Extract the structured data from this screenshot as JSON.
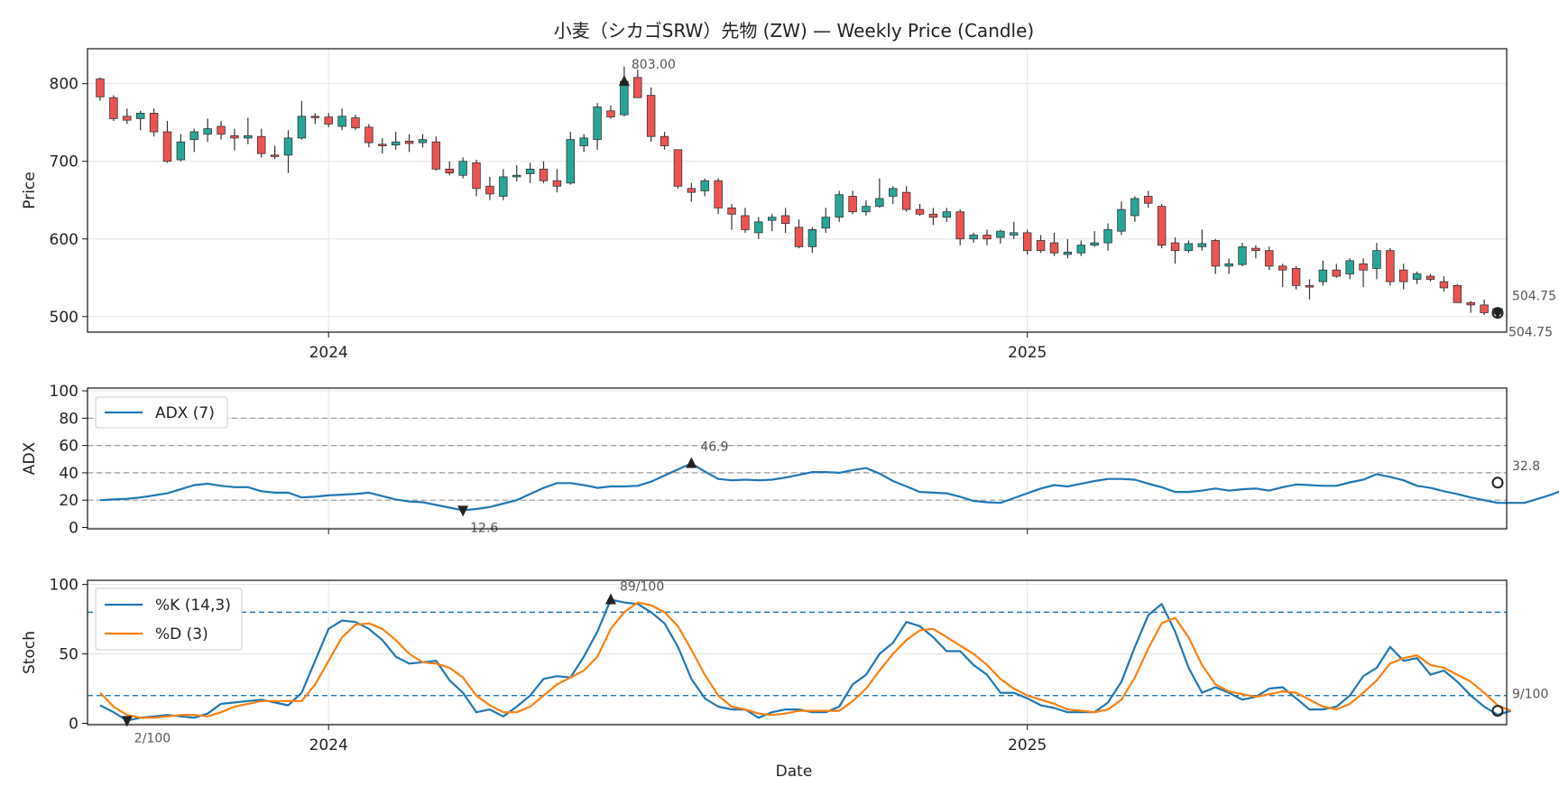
{
  "title": "小麦（シカゴSRW）先物 (ZW) — Weekly Price (Candle)",
  "colors": {
    "up": "#26a69a",
    "down": "#ef5350",
    "adx": "#1f77b4",
    "k": "#1f77b4",
    "d": "#ff7f0e",
    "marker": "#222222"
  },
  "x_axis": {
    "label": "Date",
    "year_ticks": [
      {
        "label": "2024",
        "index": 17
      },
      {
        "label": "2025",
        "index": 69
      }
    ]
  },
  "chart_data": [
    {
      "type": "candlestick",
      "panel": "price",
      "ylabel": "Price",
      "ylim": [
        480,
        845
      ],
      "yticks": [
        500,
        600,
        700,
        800
      ],
      "annotations": {
        "max_label": "803.00",
        "max_index": 39,
        "last_label": "504.75",
        "last_low_label": "504.75"
      },
      "ohlc": [
        [
          806,
          808,
          778,
          783
        ],
        [
          782,
          785,
          752,
          755
        ],
        [
          758,
          768,
          748,
          753
        ],
        [
          755,
          765,
          740,
          762
        ],
        [
          762,
          768,
          732,
          738
        ],
        [
          738,
          752,
          698,
          700
        ],
        [
          702,
          735,
          700,
          725
        ],
        [
          728,
          742,
          712,
          738
        ],
        [
          735,
          755,
          725,
          742
        ],
        [
          745,
          752,
          728,
          735
        ],
        [
          733,
          742,
          714,
          730
        ],
        [
          730,
          756,
          722,
          733
        ],
        [
          732,
          742,
          705,
          710
        ],
        [
          708,
          720,
          703,
          707
        ],
        [
          708,
          740,
          685,
          730
        ],
        [
          730,
          778,
          728,
          758
        ],
        [
          758,
          762,
          748,
          757
        ],
        [
          757,
          762,
          744,
          748
        ],
        [
          745,
          768,
          740,
          758
        ],
        [
          756,
          760,
          740,
          743
        ],
        [
          744,
          748,
          718,
          724
        ],
        [
          722,
          730,
          710,
          720
        ],
        [
          721,
          738,
          715,
          725
        ],
        [
          726,
          735,
          712,
          723
        ],
        [
          724,
          735,
          718,
          728
        ],
        [
          725,
          732,
          688,
          690
        ],
        [
          690,
          700,
          682,
          685
        ],
        [
          682,
          705,
          678,
          700
        ],
        [
          698,
          702,
          655,
          665
        ],
        [
          668,
          680,
          650,
          658
        ],
        [
          655,
          690,
          650,
          680
        ],
        [
          680,
          695,
          674,
          682
        ],
        [
          684,
          698,
          672,
          690
        ],
        [
          690,
          700,
          672,
          675
        ],
        [
          675,
          690,
          660,
          668
        ],
        [
          672,
          738,
          670,
          728
        ],
        [
          720,
          735,
          712,
          730
        ],
        [
          728,
          775,
          715,
          770
        ],
        [
          765,
          772,
          755,
          757
        ],
        [
          760,
          822,
          758,
          803
        ],
        [
          808,
          818,
          785,
          782
        ],
        [
          785,
          795,
          725,
          732
        ],
        [
          732,
          738,
          715,
          720
        ],
        [
          715,
          715,
          665,
          668
        ],
        [
          665,
          672,
          648,
          660
        ],
        [
          662,
          678,
          655,
          675
        ],
        [
          675,
          678,
          632,
          640
        ],
        [
          640,
          645,
          612,
          632
        ],
        [
          630,
          640,
          608,
          612
        ],
        [
          608,
          628,
          600,
          622
        ],
        [
          624,
          632,
          610,
          628
        ],
        [
          630,
          640,
          608,
          620
        ],
        [
          615,
          625,
          588,
          590
        ],
        [
          590,
          615,
          582,
          612
        ],
        [
          614,
          640,
          608,
          628
        ],
        [
          628,
          662,
          622,
          657
        ],
        [
          655,
          662,
          632,
          635
        ],
        [
          635,
          650,
          630,
          642
        ],
        [
          642,
          678,
          640,
          652
        ],
        [
          655,
          668,
          645,
          665
        ],
        [
          660,
          668,
          635,
          638
        ],
        [
          638,
          645,
          630,
          632
        ],
        [
          632,
          640,
          618,
          628
        ],
        [
          628,
          640,
          622,
          635
        ],
        [
          635,
          638,
          592,
          600
        ],
        [
          600,
          608,
          595,
          605
        ],
        [
          605,
          612,
          592,
          600
        ],
        [
          602,
          612,
          594,
          610
        ],
        [
          605,
          622,
          600,
          608
        ],
        [
          608,
          612,
          580,
          585
        ],
        [
          598,
          605,
          582,
          585
        ],
        [
          595,
          608,
          578,
          582
        ],
        [
          580,
          600,
          575,
          583
        ],
        [
          582,
          598,
          578,
          592
        ],
        [
          592,
          610,
          590,
          595
        ],
        [
          595,
          620,
          585,
          612
        ],
        [
          610,
          648,
          605,
          638
        ],
        [
          630,
          655,
          622,
          652
        ],
        [
          655,
          662,
          640,
          646
        ],
        [
          642,
          645,
          588,
          592
        ],
        [
          595,
          602,
          568,
          585
        ],
        [
          585,
          598,
          582,
          594
        ],
        [
          590,
          612,
          585,
          594
        ],
        [
          598,
          600,
          555,
          565
        ],
        [
          565,
          575,
          555,
          568
        ],
        [
          567,
          595,
          565,
          590
        ],
        [
          588,
          592,
          575,
          585
        ],
        [
          585,
          590,
          560,
          565
        ],
        [
          565,
          568,
          538,
          560
        ],
        [
          562,
          565,
          535,
          540
        ],
        [
          540,
          548,
          522,
          538
        ],
        [
          545,
          572,
          540,
          560
        ],
        [
          560,
          568,
          550,
          552
        ],
        [
          555,
          575,
          548,
          572
        ],
        [
          568,
          575,
          538,
          560
        ],
        [
          562,
          595,
          548,
          585
        ],
        [
          585,
          588,
          540,
          545
        ],
        [
          560,
          568,
          535,
          545
        ],
        [
          548,
          558,
          542,
          555
        ],
        [
          552,
          555,
          545,
          548
        ],
        [
          545,
          552,
          532,
          537
        ],
        [
          540,
          542,
          520,
          518
        ],
        [
          518,
          520,
          505,
          515
        ],
        [
          515,
          522,
          502,
          505
        ],
        [
          505,
          508,
          498,
          504.75
        ]
      ]
    },
    {
      "type": "line",
      "panel": "adx",
      "ylabel": "ADX",
      "ylim": [
        -1,
        102
      ],
      "yticks": [
        0,
        20,
        40,
        60,
        80,
        100
      ],
      "ref_lines": [
        20,
        40,
        60,
        80
      ],
      "series": [
        {
          "name": "ADX (7)",
          "values": [
            20,
            20.5,
            21,
            22,
            23.5,
            25,
            28,
            31,
            32,
            30.5,
            29.5,
            29.5,
            26.5,
            25.5,
            25.5,
            22,
            22.5,
            23.5,
            24,
            24.5,
            25.5,
            23,
            20.5,
            19,
            18.5,
            16.5,
            14.5,
            12.6,
            13.5,
            15,
            17.5,
            20,
            24.5,
            29,
            32.5,
            32.5,
            31,
            29,
            30,
            30,
            30.5,
            33.5,
            38,
            42.5,
            46.9,
            41,
            35.5,
            34.5,
            35,
            34.5,
            35,
            36.5,
            38.5,
            40.5,
            40.5,
            40,
            42,
            43.5,
            39.5,
            34,
            30,
            26,
            25.5,
            25,
            22.5,
            19.5,
            18.5,
            18,
            21.5,
            25,
            28.5,
            31,
            30,
            32,
            34,
            35.5,
            35.5,
            35,
            32,
            29.5,
            26,
            26,
            27,
            28.5,
            27,
            28,
            28.5,
            27,
            29.5,
            31.5,
            31,
            30.5,
            30.5,
            33,
            35,
            39,
            37,
            34.5,
            30.5,
            29,
            26.5,
            24.5,
            22,
            20,
            18,
            18,
            18,
            21,
            24,
            28,
            32.8
          ]
        }
      ],
      "annotations": {
        "max_label": "46.9",
        "max_index": 44,
        "min_label": "12.6",
        "min_index": 27,
        "last_label": "32.8"
      }
    },
    {
      "type": "line",
      "panel": "stoch",
      "ylabel": "Stoch",
      "ylim": [
        -1,
        103
      ],
      "yticks": [
        0,
        50,
        100
      ],
      "ref_lines": [
        20,
        80
      ],
      "series": [
        {
          "name": "%K (14,3)",
          "values": [
            13,
            8,
            2,
            4,
            5,
            6,
            5,
            4,
            7,
            14,
            15,
            16,
            17,
            15,
            13,
            22,
            45,
            68,
            74,
            73,
            68,
            60,
            48,
            43,
            44,
            45,
            31,
            22,
            8,
            10,
            5,
            12,
            20,
            32,
            34,
            33,
            48,
            66,
            89,
            87,
            86,
            80,
            72,
            55,
            32,
            18,
            12,
            10,
            10,
            4,
            8,
            10,
            10,
            8,
            8,
            12,
            28,
            35,
            50,
            58,
            73,
            70,
            62,
            52,
            52,
            42,
            35,
            22,
            22,
            18,
            13,
            11,
            8,
            8,
            8,
            15,
            30,
            55,
            78,
            86,
            66,
            40,
            22,
            26,
            22,
            17,
            19,
            25,
            26,
            18,
            10,
            10,
            12,
            20,
            34,
            40,
            55,
            45,
            47,
            35,
            38,
            30,
            20,
            12,
            6,
            9
          ]
        },
        {
          "name": "%D (3)",
          "values": [
            22,
            12,
            6,
            4,
            4,
            5,
            6,
            6,
            5,
            8,
            12,
            14,
            16,
            16,
            16,
            16,
            28,
            45,
            62,
            71,
            72,
            68,
            60,
            50,
            44,
            43,
            40,
            33,
            20,
            13,
            8,
            8,
            12,
            20,
            28,
            33,
            38,
            48,
            68,
            80,
            87,
            85,
            80,
            70,
            53,
            35,
            20,
            12,
            10,
            7,
            6,
            7,
            9,
            9,
            9,
            9,
            16,
            25,
            38,
            50,
            60,
            67,
            68,
            62,
            56,
            50,
            42,
            32,
            25,
            20,
            17,
            14,
            10,
            9,
            8,
            10,
            17,
            33,
            54,
            72,
            76,
            62,
            42,
            28,
            23,
            21,
            19,
            21,
            23,
            22,
            17,
            12,
            10,
            14,
            22,
            31,
            43,
            47,
            49,
            42,
            40,
            35,
            30,
            22,
            13,
            9
          ]
        }
      ],
      "annotations": {
        "max_label": "89/100",
        "max_index": 38,
        "min_label": "2/100",
        "min_index": 2,
        "last_label": "9/100"
      }
    }
  ]
}
